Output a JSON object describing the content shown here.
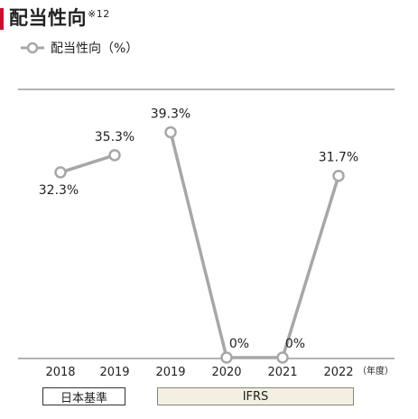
{
  "title": "配当性向",
  "title_note": "※12",
  "accent_color": "#c8102e",
  "line_color": "#a7a7a7",
  "legend_label": "配当性向（%）",
  "unit_label": "（年度）",
  "standards": [
    {
      "label": "日本基準"
    },
    {
      "label": "IFRS"
    }
  ],
  "chart_data": {
    "type": "line",
    "title": "配当性向",
    "categories": [
      "2018",
      "2019",
      "2019",
      "2020",
      "2021",
      "2022"
    ],
    "series": [
      {
        "name": "配当性向（%）",
        "segment": "日本基準",
        "points": [
          {
            "category_index": 0,
            "value": 32.3,
            "label": "32.3%"
          },
          {
            "category_index": 1,
            "value": 35.3,
            "label": "35.3%"
          }
        ]
      },
      {
        "name": "配当性向（%）",
        "segment": "IFRS",
        "points": [
          {
            "category_index": 2,
            "value": 39.3,
            "label": "39.3%"
          },
          {
            "category_index": 3,
            "value": 0,
            "label": "0%"
          },
          {
            "category_index": 4,
            "value": 0,
            "label": "0%"
          },
          {
            "category_index": 5,
            "value": 31.7,
            "label": "31.7%"
          }
        ]
      }
    ],
    "ylim": [
      0,
      40
    ],
    "grid": false,
    "legend": "top-left"
  }
}
